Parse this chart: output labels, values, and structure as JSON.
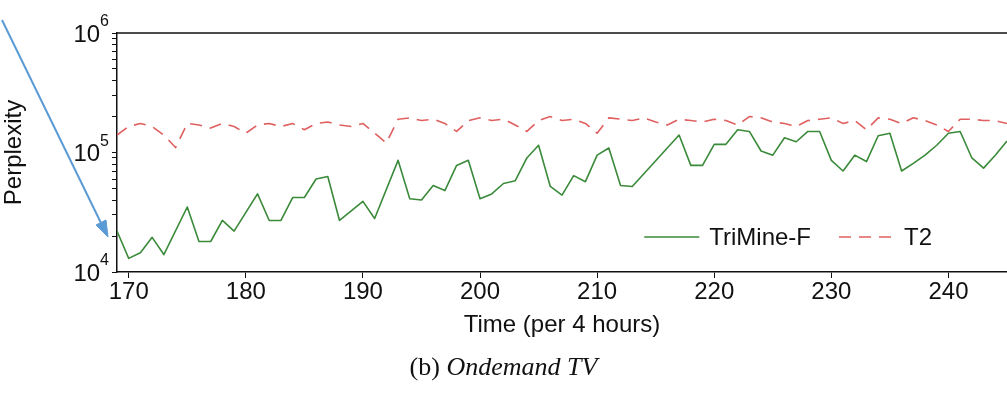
{
  "chart_data": {
    "type": "line",
    "xlabel": "Time (per 4 hours)",
    "ylabel": "Perplexity",
    "annotations": [
      "(b) Ondemand TV"
    ],
    "xlim": [
      169,
      245
    ],
    "xticks": [
      170,
      180,
      190,
      200,
      210,
      220,
      230,
      240
    ],
    "ylim": [
      10000,
      1000000
    ],
    "log": true,
    "yticks": [
      {
        "value": 10000,
        "label": "10$^{4}$"
      },
      {
        "value": 20000,
        "label": null
      },
      {
        "value": 30000,
        "label": null
      },
      {
        "value": 40000,
        "label": null
      },
      {
        "value": 50000,
        "label": null
      },
      {
        "value": 60000,
        "label": null
      },
      {
        "value": 70000,
        "label": null
      },
      {
        "value": 80000,
        "label": null
      },
      {
        "value": 90000,
        "label": null
      },
      {
        "value": 100000,
        "label": "10$^{5}$"
      },
      {
        "value": 200000,
        "label": null
      },
      {
        "value": 300000,
        "label": null
      },
      {
        "value": 400000,
        "label": null
      },
      {
        "value": 500000,
        "label": null
      },
      {
        "value": 600000,
        "label": null
      },
      {
        "value": 700000,
        "label": null
      },
      {
        "value": 800000,
        "label": null
      },
      {
        "value": 900000,
        "label": null
      },
      {
        "value": 1000000,
        "label": "10$^{6}$"
      }
    ],
    "grid": false,
    "legend": "bottom right",
    "marker": "none",
    "series": [
      {
        "name": "TriMine-F",
        "color": "#3a8a3a",
        "line_style": "solid",
        "x": [
          169,
          170,
          171,
          172,
          173,
          175,
          176,
          177,
          178,
          179,
          181,
          182,
          183,
          184,
          185,
          186,
          187,
          188,
          190,
          191,
          193,
          194,
          195,
          196,
          197,
          198,
          199,
          200,
          201,
          202,
          203,
          204,
          205,
          206,
          207,
          208,
          209,
          210,
          211,
          212,
          213,
          217,
          218,
          219,
          220,
          221,
          222,
          223,
          224,
          225,
          226,
          227,
          228,
          229,
          230,
          231,
          232,
          233,
          234,
          235,
          236,
          237,
          238,
          239,
          240,
          241,
          242,
          243,
          244,
          245
        ],
        "values": [
          22000,
          13000,
          14500,
          19500,
          14000,
          35000,
          18000,
          18000,
          27000,
          22000,
          45000,
          27000,
          27000,
          42000,
          42000,
          60000,
          63000,
          27000,
          39000,
          28000,
          86000,
          41000,
          40000,
          53000,
          48000,
          78000,
          86000,
          41000,
          45000,
          55000,
          58000,
          90000,
          115000,
          52000,
          44000,
          64000,
          57000,
          95000,
          109000,
          53000,
          52000,
          140000,
          78000,
          78000,
          117000,
          117000,
          155000,
          150000,
          103000,
          95000,
          133000,
          123000,
          150000,
          150000,
          86000,
          70000,
          95000,
          84000,
          138000,
          145000,
          70000,
          81000,
          95000,
          115000,
          145000,
          150000,
          90000,
          74000,
          95000,
          125000
        ]
      },
      {
        "name": "T2",
        "color": "#e06060",
        "line_style": "dashed",
        "x": [
          169,
          170,
          171,
          172,
          173,
          174,
          175,
          176,
          177,
          178,
          179,
          180,
          181,
          182,
          183,
          184,
          185,
          186,
          187,
          188,
          189,
          190,
          191,
          192,
          193,
          194,
          195,
          196,
          197,
          198,
          199,
          200,
          201,
          202,
          203,
          204,
          205,
          206,
          207,
          208,
          209,
          210,
          211,
          212,
          213,
          214,
          215,
          216,
          217,
          218,
          219,
          220,
          221,
          222,
          223,
          224,
          225,
          226,
          227,
          228,
          229,
          230,
          231,
          232,
          233,
          234,
          235,
          236,
          237,
          238,
          239,
          240,
          241,
          242,
          243,
          244,
          245
        ],
        "values": [
          140000,
          165000,
          175000,
          165000,
          140000,
          110000,
          175000,
          170000,
          160000,
          175000,
          165000,
          145000,
          170000,
          175000,
          165000,
          175000,
          155000,
          175000,
          180000,
          170000,
          165000,
          175000,
          145000,
          120000,
          190000,
          195000,
          185000,
          190000,
          175000,
          150000,
          185000,
          195000,
          185000,
          190000,
          170000,
          150000,
          185000,
          200000,
          185000,
          190000,
          175000,
          145000,
          195000,
          190000,
          185000,
          195000,
          180000,
          170000,
          190000,
          185000,
          180000,
          190000,
          185000,
          170000,
          200000,
          195000,
          180000,
          175000,
          165000,
          185000,
          190000,
          195000,
          175000,
          185000,
          155000,
          195000,
          190000,
          175000,
          195000,
          185000,
          170000,
          150000,
          190000,
          190000,
          185000,
          185000,
          175000
        ]
      }
    ]
  }
}
